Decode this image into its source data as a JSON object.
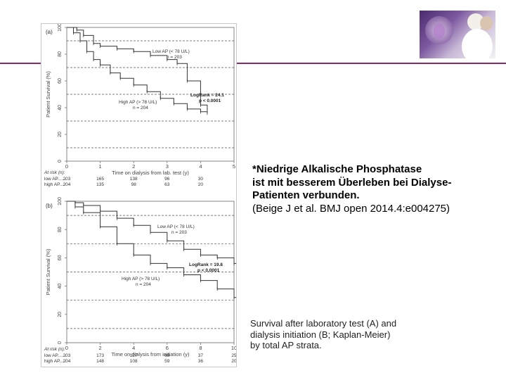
{
  "caption_de": {
    "line1": "*Niedrige Alkalische Phosphatase",
    "line2": "ist mit besserem Überleben bei Dialyse-",
    "line3": "Patienten verbunden.",
    "line4": "(Beige J et al. BMJ open 2014.4:e004275)"
  },
  "caption_en": {
    "line1": "Survival after laboratory test (A) and",
    "line2": "dialysis initiation (B; Kaplan-Meier)",
    "line3": "by total AP strata."
  },
  "colors": {
    "divider": "#8a2a6e",
    "curve": "#333333"
  },
  "chart_data": [
    {
      "type": "line",
      "panel": "(a)",
      "ylabel": "Patient Survival (%)",
      "xlabel": "Time on dialysis  from lab. test (y)",
      "xlim": [
        0,
        5
      ],
      "ylim": [
        0,
        100
      ],
      "xticks": [
        "0",
        "1",
        "2",
        "3",
        "4",
        "5"
      ],
      "yticks": [
        "0",
        "20",
        "40",
        "60",
        "80",
        "100"
      ],
      "reference_lines_y": [
        10,
        30,
        50,
        70,
        90
      ],
      "series": [
        {
          "name": "Low AP (< 78 U/L)",
          "n_label": "n = 203",
          "x": [
            0,
            0.3,
            0.5,
            0.8,
            1.0,
            1.5,
            2.0,
            2.5,
            3.0,
            3.3,
            3.6,
            4.0,
            4.2
          ],
          "y": [
            100,
            98,
            94,
            88,
            86,
            84,
            82,
            79,
            76,
            73,
            60,
            42,
            38
          ]
        },
        {
          "name": "High AP (> 78 U/L)",
          "n_label": "n = 204",
          "x": [
            0,
            0.2,
            0.4,
            0.6,
            0.8,
            1.0,
            1.3,
            1.6,
            2.0,
            2.4,
            2.8,
            3.2,
            3.6,
            4.0,
            4.2
          ],
          "y": [
            100,
            96,
            90,
            82,
            76,
            72,
            66,
            62,
            57,
            52,
            47,
            43,
            39,
            37,
            36
          ]
        }
      ],
      "stat_line1": "LogRank = 24.1",
      "stat_line2": "p < 0.0001",
      "at_risk_title": "At risk (n):",
      "at_risk": [
        {
          "label": "low AP.......",
          "values": [
            "203",
            "165",
            "138",
            "96",
            "30"
          ]
        },
        {
          "label": "high AP.....",
          "values": [
            "204",
            "135",
            "98",
            "63",
            "20"
          ]
        }
      ]
    },
    {
      "type": "line",
      "panel": "(b)",
      "ylabel": "Patient Survival (%)",
      "xlabel": "Time on dialysis  from initiation (y)",
      "xlim": [
        0,
        10
      ],
      "ylim": [
        0,
        100
      ],
      "xticks": [
        "0",
        "2",
        "4",
        "6",
        "8",
        "10"
      ],
      "yticks": [
        "0",
        "20",
        "40",
        "60",
        "80",
        "100"
      ],
      "reference_lines_y": [
        10,
        30,
        50,
        70,
        90
      ],
      "series": [
        {
          "name": "Low AP (< 78 U/L)",
          "n_label": "n = 203",
          "x": [
            0,
            0.5,
            1,
            2,
            3,
            4,
            5,
            6,
            7,
            8,
            9,
            10,
            10.5
          ],
          "y": [
            100,
            99,
            97,
            93,
            88,
            83,
            78,
            72,
            66,
            62,
            60,
            56,
            55
          ]
        },
        {
          "name": "High AP (> 78 U/L)",
          "n_label": "n = 204",
          "x": [
            0,
            0.5,
            1,
            2,
            3,
            4,
            5,
            6,
            7,
            8,
            9,
            10,
            10.5
          ],
          "y": [
            100,
            96,
            92,
            82,
            70,
            62,
            56,
            53,
            48,
            44,
            38,
            32,
            29
          ]
        }
      ],
      "stat_line1": "LogRank = 19.8",
      "stat_line2": "p < 0.0001",
      "at_risk_title": "At risk (n):",
      "at_risk": [
        {
          "label": "low AP.......",
          "values": [
            "203",
            "173",
            "127",
            "68",
            "37",
            "25"
          ]
        },
        {
          "label": "high AP.....",
          "values": [
            "204",
            "148",
            "108",
            "59",
            "36",
            "20"
          ]
        }
      ]
    }
  ]
}
